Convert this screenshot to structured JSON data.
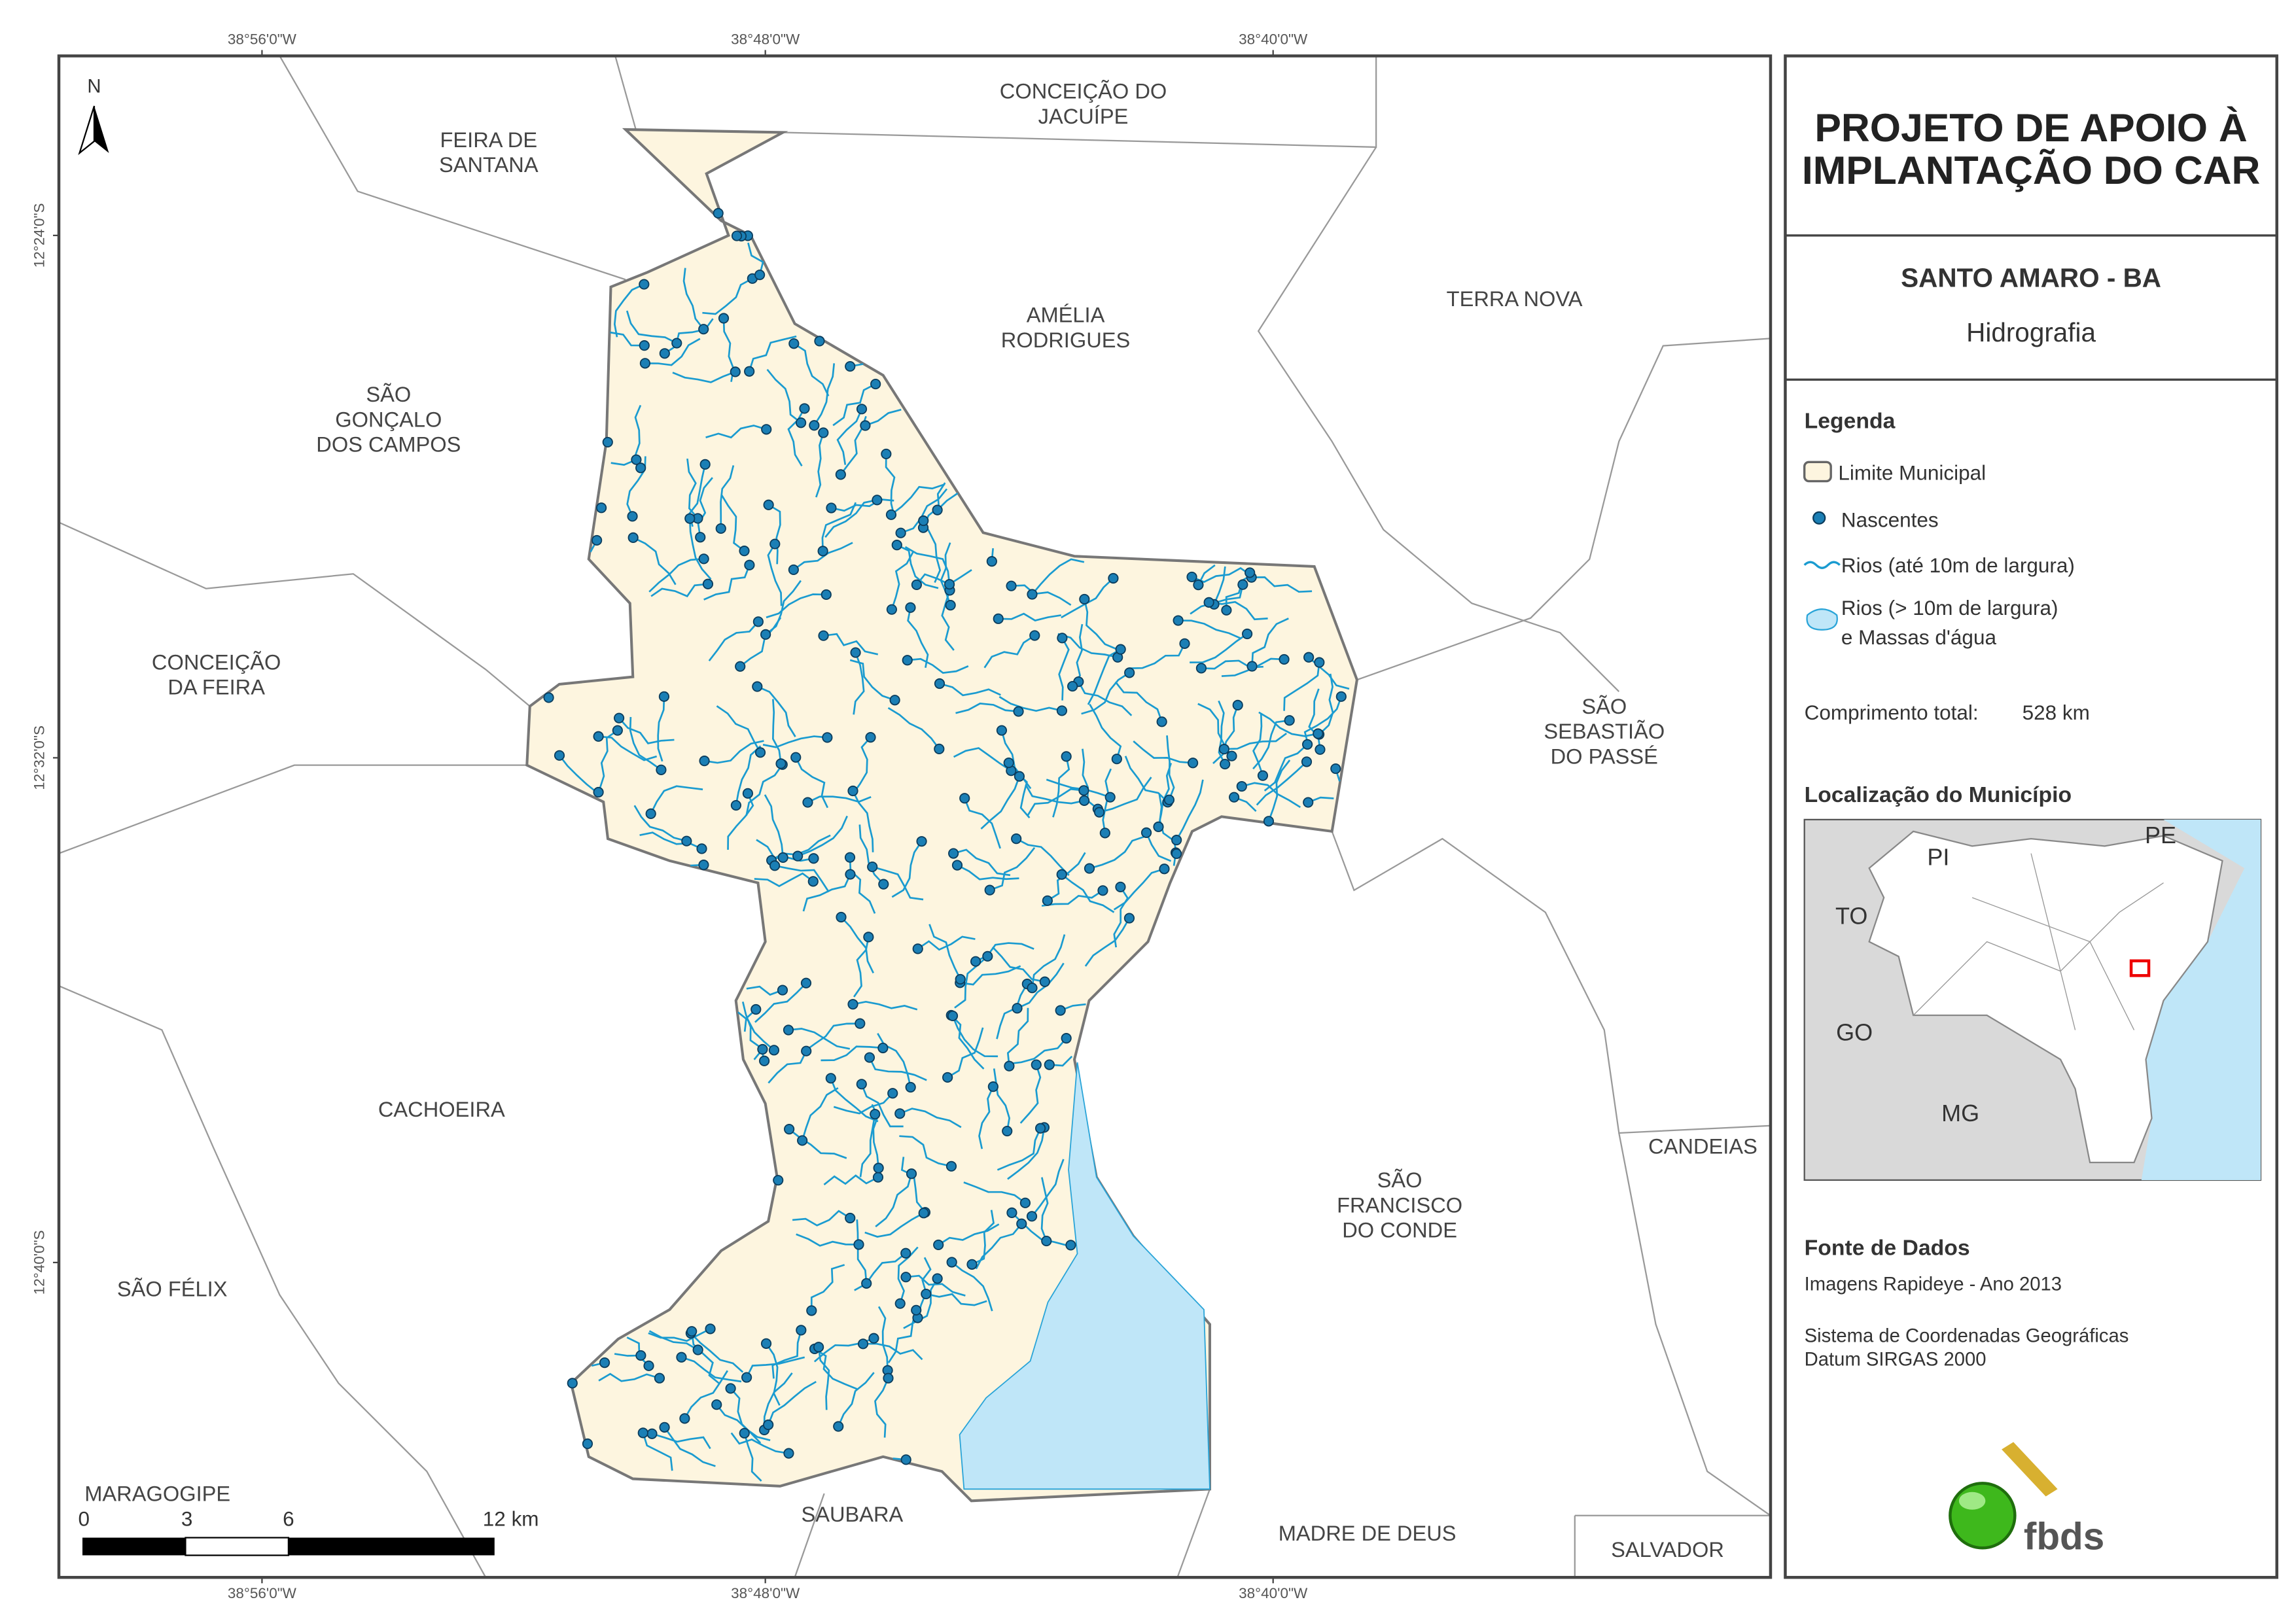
{
  "header": {
    "title_lines": [
      "PROJETO DE APOIO À",
      "IMPLANTAÇÃO DO CAR"
    ],
    "municipality": "SANTO AMARO - BA",
    "theme": "Hidrografia"
  },
  "legend": {
    "title": "Legenda",
    "items": [
      {
        "label_lines": [
          "Limite Municipal"
        ]
      },
      {
        "label_lines": [
          "Nascentes"
        ]
      },
      {
        "label_lines": [
          "Rios (até 10m de largura)"
        ]
      },
      {
        "label_lines": [
          "Rios (> 10m de largura)",
          "e Massas d'água"
        ]
      }
    ]
  },
  "total_length": {
    "label": "Comprimento total:",
    "value": "528 km"
  },
  "location": {
    "title": "Localização do Município",
    "states": [
      "PI",
      "PE",
      "TO",
      "GO",
      "MG"
    ]
  },
  "source": {
    "title": "Fonte de Dados",
    "lines": [
      "Imagens Rapideye - Ano 2013",
      "Sistema de Coordenadas Geográficas",
      "Datum SIRGAS 2000"
    ]
  },
  "logo": "fbds",
  "map": {
    "north": "N",
    "coordinates": {
      "top": [
        "38°56'0\"W",
        "38°48'0\"W",
        "38°40'0\"W"
      ],
      "bottom": [
        "38°56'0\"W",
        "38°48'0\"W",
        "38°40'0\"W"
      ],
      "left": [
        "12°24'0\"S",
        "12°32'0\"S",
        "12°40'0\"S"
      ]
    },
    "municipalities": [
      {
        "lines": [
          "CONCEIÇÃO DO",
          "JACUÍPE"
        ]
      },
      {
        "lines": [
          "FEIRA DE",
          "SANTANA"
        ]
      },
      {
        "lines": [
          "TERRA NOVA"
        ]
      },
      {
        "lines": [
          "AMÉLIA",
          "RODRIGUES"
        ]
      },
      {
        "lines": [
          "SÃO",
          "GONÇALO",
          "DOS CAMPOS"
        ]
      },
      {
        "lines": [
          "CONCEIÇÃO",
          "DA FEIRA"
        ]
      },
      {
        "lines": [
          "SÃO",
          "SEBASTIÃO",
          "DO PASSÉ"
        ]
      },
      {
        "lines": [
          "CACHOEIRA"
        ]
      },
      {
        "lines": [
          "SÃO",
          "FRANCISCO",
          "DO CONDE"
        ]
      },
      {
        "lines": [
          "CANDEIAS"
        ]
      },
      {
        "lines": [
          "SÃO FÉLIX"
        ]
      },
      {
        "lines": [
          "MARAGOGIPE"
        ]
      },
      {
        "lines": [
          "SAUBARA"
        ]
      },
      {
        "lines": [
          "MADRE DE DEUS"
        ]
      },
      {
        "lines": [
          "SALVADOR"
        ]
      }
    ],
    "scale_bar": [
      "0",
      "3",
      "6",
      "12 km"
    ]
  }
}
